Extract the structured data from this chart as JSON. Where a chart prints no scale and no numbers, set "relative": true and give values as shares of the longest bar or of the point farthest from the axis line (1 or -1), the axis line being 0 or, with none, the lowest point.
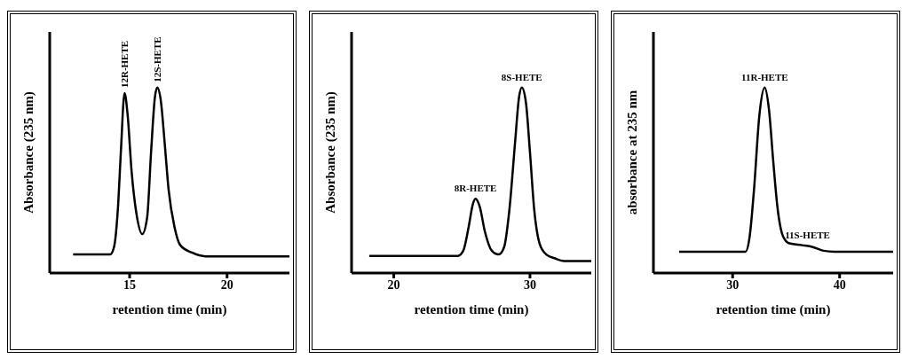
{
  "chart_data": [
    {
      "type": "line",
      "relative": true,
      "color": "#000000",
      "xlabel": "retention time (min)",
      "ylabel": "Absorbance (235 nm)",
      "xlim": [
        10.9,
        23.2
      ],
      "xticks": [
        15,
        20
      ],
      "x": [
        12.1,
        14.0,
        14.2,
        14.4,
        14.55,
        14.74,
        14.9,
        15.1,
        15.35,
        15.65,
        15.9,
        16.1,
        16.3,
        16.42,
        16.6,
        16.8,
        17.0,
        17.3,
        17.6,
        18.2,
        18.9,
        23.2
      ],
      "values": [
        0.1,
        0.1,
        0.14,
        0.35,
        0.65,
        0.97,
        0.85,
        0.55,
        0.32,
        0.21,
        0.3,
        0.65,
        0.95,
        1.0,
        0.93,
        0.7,
        0.45,
        0.25,
        0.15,
        0.11,
        0.09,
        0.09
      ],
      "annotations": [
        {
          "text": "12R-HETE",
          "x": 14.74,
          "y": 0.97
        },
        {
          "text": "12S-HETE",
          "x": 16.42,
          "y": 1.0
        }
      ]
    },
    {
      "type": "line",
      "relative": true,
      "color": "#000000",
      "xlabel": "retention time (min)",
      "ylabel": "Absorbance (235 nm)",
      "xlim": [
        16.9,
        34.5
      ],
      "xticks": [
        20,
        30
      ],
      "x": [
        18.2,
        24.7,
        25.1,
        25.5,
        25.8,
        26.0,
        26.3,
        26.7,
        27.2,
        27.7,
        28.1,
        28.5,
        28.9,
        29.2,
        29.4,
        29.7,
        30.0,
        30.3,
        30.7,
        31.2,
        31.8,
        32.5,
        34.5
      ],
      "values": [
        0.092,
        0.092,
        0.12,
        0.25,
        0.37,
        0.4,
        0.36,
        0.22,
        0.12,
        0.1,
        0.14,
        0.35,
        0.7,
        0.95,
        1.0,
        0.92,
        0.65,
        0.35,
        0.16,
        0.1,
        0.08,
        0.065,
        0.065
      ],
      "annotations": [
        {
          "text": "8R-HETE",
          "x": 26.0,
          "y": 0.4
        },
        {
          "text": "8S-HETE",
          "x": 29.4,
          "y": 1.0
        }
      ]
    },
    {
      "type": "line",
      "relative": true,
      "color": "#000000",
      "xlabel": "retention time (min)",
      "ylabel": "absorbance at 235 nm",
      "xlim": [
        22.6,
        45
      ],
      "xticks": [
        30,
        40
      ],
      "x": [
        25.0,
        31.2,
        31.6,
        32.0,
        32.5,
        33.0,
        33.4,
        33.8,
        34.2,
        34.7,
        35.3,
        36.5,
        37.5,
        38.5,
        39.5,
        45
      ],
      "values": [
        0.115,
        0.115,
        0.2,
        0.45,
        0.85,
        1.0,
        0.88,
        0.6,
        0.35,
        0.2,
        0.16,
        0.15,
        0.14,
        0.12,
        0.115,
        0.115
      ],
      "annotations": [
        {
          "text": "11R-HETE",
          "x": 33.0,
          "y": 1.0
        },
        {
          "text": "11S-HETE",
          "x": 37.0,
          "y": 0.15
        }
      ]
    }
  ]
}
